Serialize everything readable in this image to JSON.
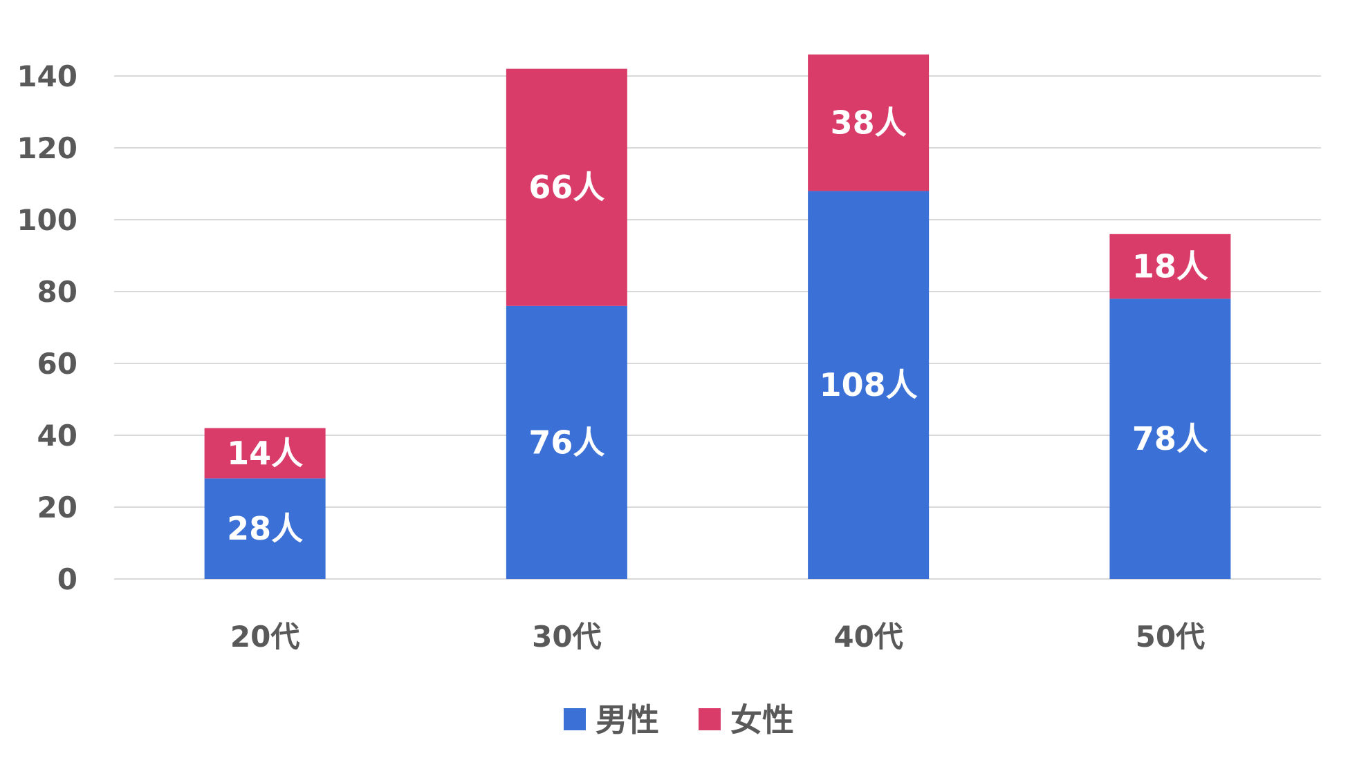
{
  "chart_data": {
    "type": "bar",
    "stacked": true,
    "categories": [
      "20代",
      "30代",
      "40代",
      "50代"
    ],
    "series": [
      {
        "name": "男性",
        "values": [
          28,
          76,
          108,
          78
        ],
        "labels": [
          "28人",
          "76人",
          "108人",
          "78人"
        ],
        "color": "#3b71d6"
      },
      {
        "name": "女性",
        "values": [
          14,
          66,
          38,
          18
        ],
        "labels": [
          "14人",
          "66人",
          "38人",
          "18人"
        ],
        "color": "#da3c6a"
      }
    ],
    "ylim": [
      0,
      140
    ],
    "yticks": [
      0,
      20,
      40,
      60,
      80,
      100,
      120,
      140
    ],
    "grid": true,
    "legend_position": "bottom",
    "title": "",
    "xlabel": "",
    "ylabel": ""
  }
}
